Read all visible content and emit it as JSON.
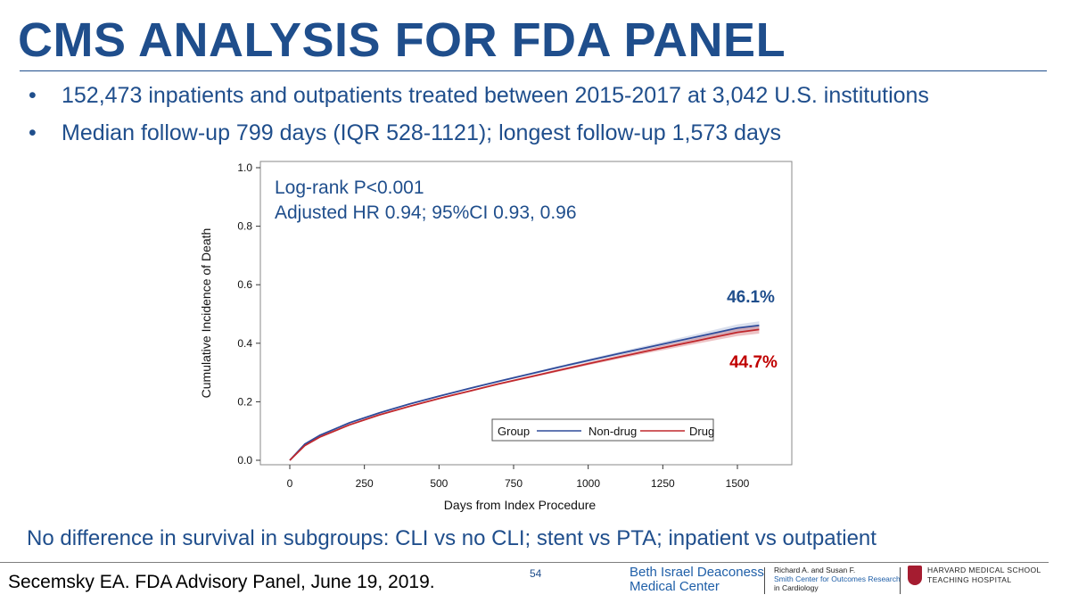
{
  "slide": {
    "title": "CMS ANALYSIS FOR FDA PANEL",
    "bullets": [
      "152,473 inpatients and outpatients treated between 2015-2017 at 3,042 U.S. institutions",
      "Median follow-up 799 days (IQR 528-1121); longest follow-up 1,573 days"
    ],
    "bullet_glyph": "•",
    "footer_note": "No difference in survival in subgroups: CLI vs no CLI; stent vs PTA; inpatient vs outpatient",
    "citation": "Secemsky EA. FDA Advisory Panel, June 19, 2019.",
    "page_number": "54",
    "logos": {
      "bidmc_line1": "Beth Israel Deaconess",
      "bidmc_line2": "Medical Center",
      "smith_line1": "Richard A. and Susan F.",
      "smith_line2": "Smith Center for Outcomes Research",
      "smith_line3": "in Cardiology",
      "hms_line1": "HARVARD MEDICAL SCHOOL",
      "hms_line2": "TEACHING HOSPITAL"
    }
  },
  "chart_data": {
    "type": "line",
    "xlabel": "Days from Index Procedure",
    "ylabel": "Cumulative Incidence of Death",
    "xlim": [
      -80,
      1600
    ],
    "ylim": [
      0,
      1.0
    ],
    "xticks": [
      0,
      250,
      500,
      750,
      1000,
      1250,
      1500
    ],
    "yticks": [
      "0.0",
      "0.2",
      "0.4",
      "0.6",
      "0.8",
      "1.0"
    ],
    "annotations": [
      "Log-rank P<0.001",
      "Adjusted HR 0.94; 95%CI 0.93, 0.96"
    ],
    "legend": {
      "title": "Group",
      "position": "bottom-right"
    },
    "series": [
      {
        "name": "Non-drug",
        "color": "#2f4b9a",
        "end_label": "46.1%",
        "end_label_color": "#1f4e8c",
        "x": [
          0,
          50,
          100,
          200,
          300,
          400,
          500,
          600,
          700,
          800,
          900,
          1000,
          1100,
          1200,
          1300,
          1400,
          1500,
          1573
        ],
        "y": [
          0,
          0.055,
          0.085,
          0.128,
          0.162,
          0.192,
          0.219,
          0.245,
          0.27,
          0.294,
          0.318,
          0.341,
          0.364,
          0.386,
          0.408,
          0.43,
          0.452,
          0.461
        ]
      },
      {
        "name": "Drug",
        "color": "#c0282d",
        "end_label": "44.7%",
        "end_label_color": "#c00000",
        "x": [
          0,
          50,
          100,
          200,
          300,
          400,
          500,
          600,
          700,
          800,
          900,
          1000,
          1100,
          1200,
          1300,
          1400,
          1500,
          1573
        ],
        "y": [
          0,
          0.05,
          0.079,
          0.121,
          0.155,
          0.184,
          0.211,
          0.236,
          0.261,
          0.284,
          0.307,
          0.33,
          0.352,
          0.374,
          0.395,
          0.416,
          0.437,
          0.447
        ]
      }
    ]
  }
}
